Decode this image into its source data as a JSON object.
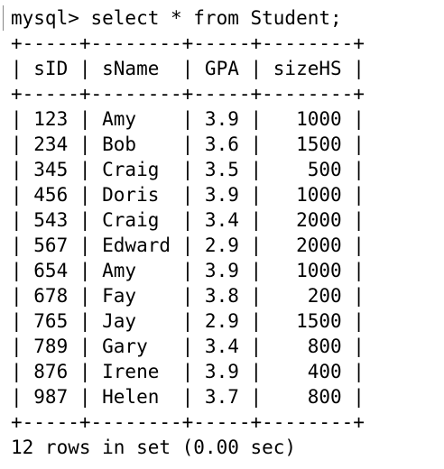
{
  "terminal": {
    "prompt": "mysql> select * from Student;",
    "border": "+-----+--------+-----+--------+",
    "header": "| sID | sName  | GPA | sizeHS |",
    "rows": [
      "| 123 | Amy    | 3.9 |   1000 |",
      "| 234 | Bob    | 3.6 |   1500 |",
      "| 345 | Craig  | 3.5 |    500 |",
      "| 456 | Doris  | 3.9 |   1000 |",
      "| 543 | Craig  | 3.4 |   2000 |",
      "| 567 | Edward | 2.9 |   2000 |",
      "| 654 | Amy    | 3.9 |   1000 |",
      "| 678 | Fay    | 3.8 |    200 |",
      "| 765 | Jay    | 2.9 |   1500 |",
      "| 789 | Gary   | 3.4 |    800 |",
      "| 876 | Irene  | 3.9 |    400 |",
      "| 987 | Helen  | 3.7 |    800 |"
    ],
    "footer": "12 rows in set (0.00 sec)"
  }
}
